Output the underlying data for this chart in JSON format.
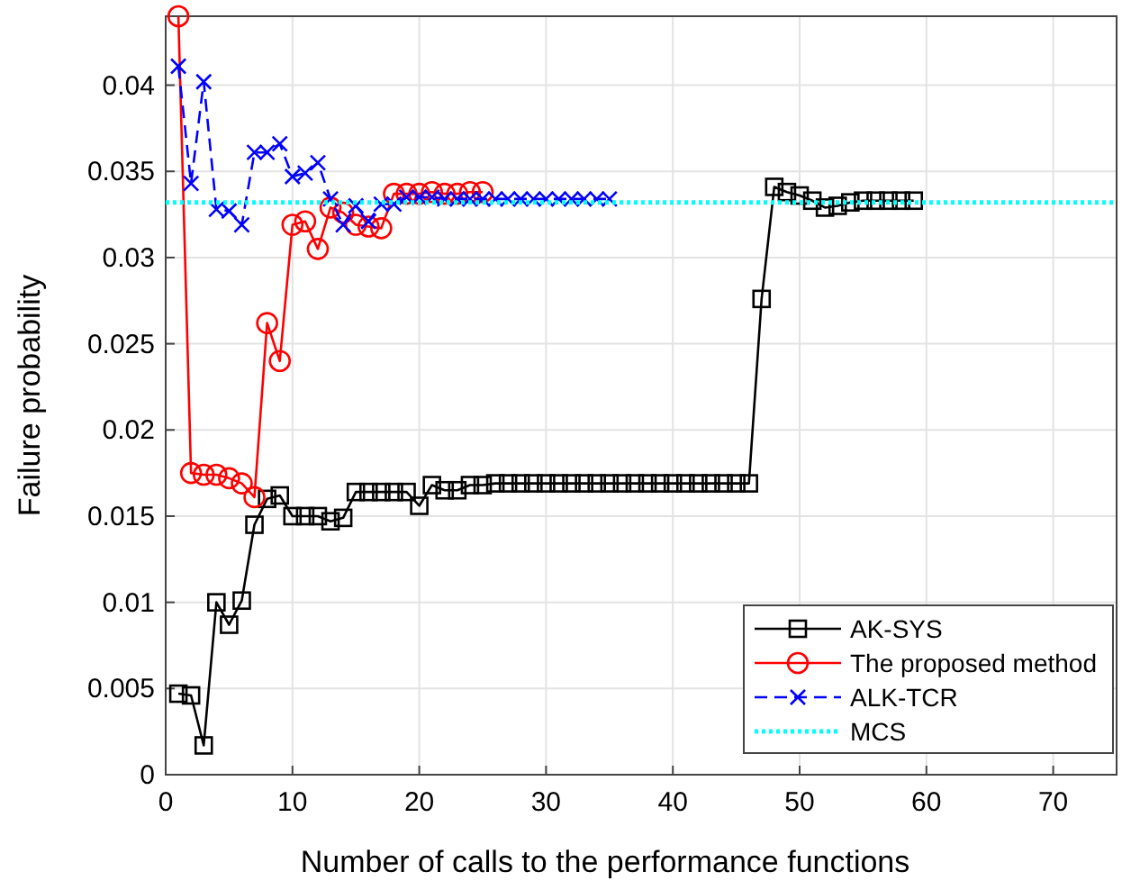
{
  "chart_data": {
    "type": "line",
    "xlabel": "Number of calls to the performance functions",
    "ylabel": "Failure probability",
    "xlim": [
      0,
      75
    ],
    "xticks": [
      0,
      10,
      20,
      30,
      40,
      50,
      60,
      70
    ],
    "ylim": [
      0,
      0.044
    ],
    "yticks": [
      0,
      0.005,
      0.01,
      0.015,
      0.02,
      0.025,
      0.03,
      0.035,
      0.04
    ],
    "grid": true,
    "legend": "bottom right",
    "series": [
      {
        "name": "AK-SYS",
        "color": "#000000",
        "marker": "square",
        "line_style": "solid",
        "x": [
          1,
          2,
          3,
          4,
          5,
          6,
          7,
          8,
          9,
          10,
          11,
          12,
          13,
          14,
          15,
          16,
          17,
          18,
          19,
          20,
          21,
          22,
          23,
          24,
          25,
          26,
          27,
          28,
          29,
          30,
          31,
          32,
          33,
          34,
          35,
          36,
          37,
          38,
          39,
          40,
          41,
          42,
          43,
          44,
          45,
          46,
          47,
          48,
          49,
          50,
          51,
          52,
          53,
          54,
          55,
          56,
          57,
          58,
          59
        ],
        "values": [
          0.0047,
          0.0046,
          0.0017,
          0.01,
          0.0087,
          0.0101,
          0.0145,
          0.016,
          0.0162,
          0.015,
          0.015,
          0.015,
          0.0147,
          0.0149,
          0.0164,
          0.0164,
          0.0164,
          0.0164,
          0.0164,
          0.0156,
          0.0168,
          0.0165,
          0.0165,
          0.0168,
          0.0168,
          0.0169,
          0.0169,
          0.0169,
          0.0169,
          0.0169,
          0.0169,
          0.0169,
          0.0169,
          0.0169,
          0.0169,
          0.0169,
          0.0169,
          0.0169,
          0.0169,
          0.0169,
          0.0169,
          0.0169,
          0.0169,
          0.0169,
          0.0169,
          0.0169,
          0.0276,
          0.0341,
          0.0338,
          0.0336,
          0.0333,
          0.0329,
          0.033,
          0.0332,
          0.0333,
          0.0333,
          0.0333,
          0.0333,
          0.0333
        ]
      },
      {
        "name": "The proposed method",
        "color": "#ff0000",
        "marker": "circle",
        "line_style": "solid",
        "x": [
          1,
          2,
          3,
          4,
          5,
          6,
          7,
          8,
          9,
          10,
          11,
          12,
          13,
          14,
          15,
          16,
          17,
          18,
          19,
          20,
          21,
          22,
          23,
          24,
          25
        ],
        "values": [
          0.044,
          0.0175,
          0.0174,
          0.0174,
          0.0172,
          0.0169,
          0.0161,
          0.0262,
          0.024,
          0.0319,
          0.0321,
          0.0305,
          0.0329,
          0.0326,
          0.0319,
          0.0318,
          0.0317,
          0.0337,
          0.0337,
          0.0337,
          0.0338,
          0.0337,
          0.0337,
          0.0338,
          0.0338
        ]
      },
      {
        "name": "ALK-TCR",
        "color": "#0000ff",
        "marker": "cross",
        "line_style": "dashed",
        "x": [
          1,
          2,
          3,
          4,
          5,
          6,
          7,
          8,
          9,
          10,
          11,
          12,
          13,
          14,
          15,
          16,
          17,
          18,
          19,
          20,
          21,
          22,
          23,
          24,
          25,
          26,
          27,
          28,
          29,
          30,
          31,
          32,
          33,
          34,
          35
        ],
        "values": [
          0.0411,
          0.0343,
          0.0402,
          0.0328,
          0.0327,
          0.0319,
          0.0361,
          0.0361,
          0.0366,
          0.0347,
          0.0349,
          0.0355,
          0.0334,
          0.0319,
          0.033,
          0.0321,
          0.0331,
          0.0331,
          0.0335,
          0.0335,
          0.0335,
          0.0334,
          0.0334,
          0.0334,
          0.0334,
          0.0334,
          0.0334,
          0.0334,
          0.0334,
          0.0334,
          0.0334,
          0.0334,
          0.0334,
          0.0334,
          0.0334
        ]
      },
      {
        "name": "MCS",
        "color": "#00ffff",
        "marker": "none",
        "line_style": "dotted",
        "x": [
          0,
          75
        ],
        "values": [
          0.0332,
          0.0332
        ]
      }
    ]
  }
}
